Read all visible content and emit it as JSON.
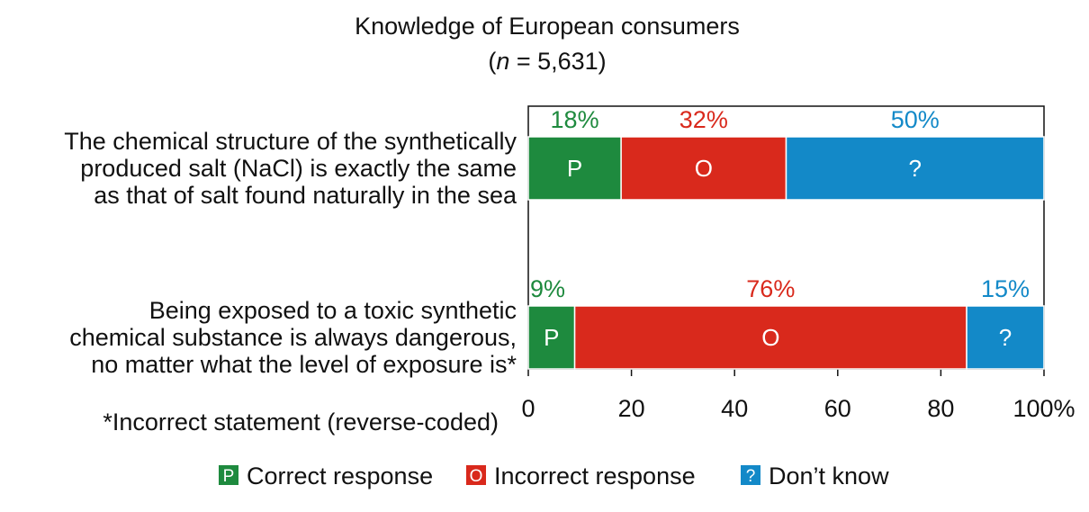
{
  "chart_data": {
    "type": "bar",
    "orientation": "horizontal",
    "stacked": true,
    "title": "Knowledge of European consumers",
    "subtitle_prefix": "(",
    "subtitle_italic": "n",
    "subtitle_suffix": " = 5,631)",
    "categories": [
      [
        "The chemical structure of the synthetically",
        "produced salt (NaCl) is exactly the same",
        "as that of salt found naturally in the sea"
      ],
      [
        "Being exposed to a toxic synthetic",
        "chemical substance is always dangerous,",
        "no matter what the level of exposure is*"
      ]
    ],
    "series": [
      {
        "name": "Correct response",
        "letter": "P",
        "color": "#1e8a3e",
        "label_color": "#1e8a3e",
        "values": [
          18,
          9
        ],
        "value_labels": [
          "18%",
          "9%"
        ]
      },
      {
        "name": "Incorrect response",
        "letter": "O",
        "color": "#d9291c",
        "label_color": "#d9291c",
        "values": [
          32,
          76
        ],
        "value_labels": [
          "32%",
          "76%"
        ]
      },
      {
        "name": "Don’t know",
        "letter": "?",
        "color": "#1389c8",
        "label_color": "#1389c8",
        "values": [
          50,
          15
        ],
        "value_labels": [
          "50%",
          "15%"
        ]
      }
    ],
    "xlim": [
      0,
      100
    ],
    "ticks": [
      0,
      20,
      40,
      60,
      80,
      100
    ],
    "tick_labels": [
      "0",
      "20",
      "40",
      "60",
      "80",
      "100%"
    ],
    "footnote": "*Incorrect statement (reverse-coded)",
    "legend_position": "bottom-center"
  }
}
